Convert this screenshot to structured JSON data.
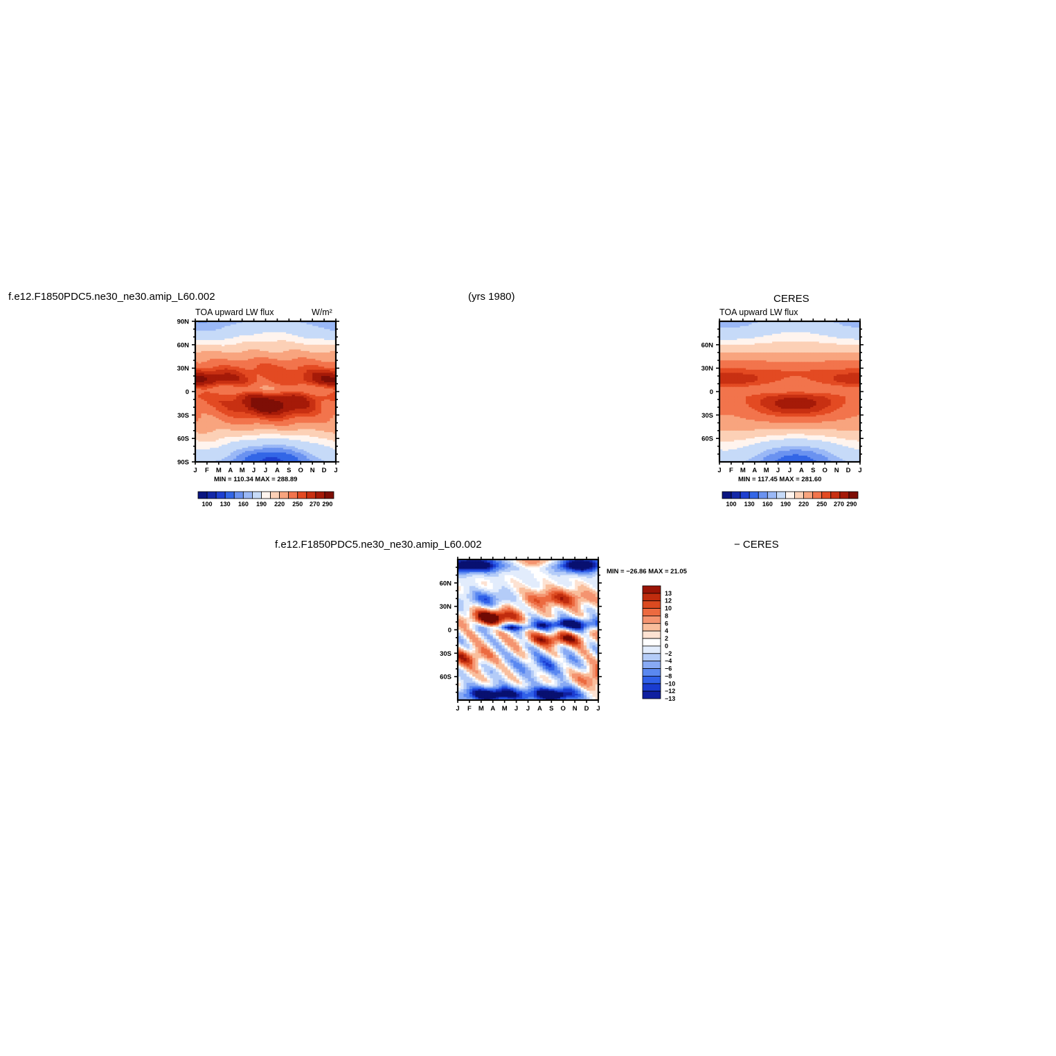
{
  "figure": {
    "case_title_left": "f.e12.F1850PDC5.ne30_ne30.amip_L60.002",
    "years_label": "(yrs 1980)",
    "case_title_right": "CERES",
    "diff_title_left": "f.e12.F1850PDC5.ne30_ne30.amip_L60.002",
    "diff_title_right": "− CERES"
  },
  "colors": {
    "abs_palette": [
      "#0a1580",
      "#1328a8",
      "#1e40d0",
      "#3366e6",
      "#6a92f0",
      "#9ab8f6",
      "#c6daf8",
      "#fff4ee",
      "#fcd0b6",
      "#f8a47e",
      "#f2744c",
      "#e34a22",
      "#c83012",
      "#a51a08",
      "#7e0e06"
    ],
    "diff_palette": [
      "#081070",
      "#1020a0",
      "#1a3cd0",
      "#3060e8",
      "#5a88f0",
      "#88aaf4",
      "#b4ccf8",
      "#e2ecfc",
      "#ffffff",
      "#fde2d2",
      "#f9be9c",
      "#f49470",
      "#ec6a40",
      "#db4a20",
      "#c02c0e",
      "#9a1406",
      "#700a04"
    ]
  },
  "chart_data": [
    {
      "type": "heatmap",
      "title": "TOA upward LW flux",
      "units": "W/m²",
      "x_tick_labels": [
        "J",
        "F",
        "M",
        "A",
        "M",
        "J",
        "J",
        "A",
        "S",
        "O",
        "N",
        "D",
        "J"
      ],
      "y_tick_labels": [
        "90N",
        "60N",
        "30N",
        "0",
        "30S",
        "60S",
        "90S"
      ],
      "y_values": [
        90,
        60,
        30,
        0,
        -30,
        -60,
        -90
      ],
      "stats": "MIN = 110.34 MAX = 288.89",
      "min": 110.34,
      "max": 288.89,
      "colorbar_labels": [
        "100",
        "130",
        "160",
        "190",
        "220",
        "250",
        "270",
        "290"
      ],
      "colorbar_levels": [
        100,
        130,
        160,
        190,
        220,
        250,
        270,
        290
      ],
      "zlim": [
        90,
        300
      ]
    },
    {
      "type": "heatmap",
      "title": "TOA upward LW flux",
      "x_tick_labels": [
        "J",
        "F",
        "M",
        "A",
        "M",
        "J",
        "J",
        "A",
        "S",
        "O",
        "N",
        "D",
        "J"
      ],
      "y_tick_labels": [
        "60N",
        "30N",
        "0",
        "30S",
        "60S"
      ],
      "y_values": [
        60,
        30,
        0,
        -30,
        -60
      ],
      "stats": "MIN = 117.45 MAX = 281.60",
      "min": 117.45,
      "max": 281.6,
      "colorbar_labels": [
        "100",
        "130",
        "160",
        "190",
        "220",
        "250",
        "270",
        "290"
      ],
      "colorbar_levels": [
        100,
        130,
        160,
        190,
        220,
        250,
        270,
        290
      ],
      "zlim": [
        90,
        300
      ]
    },
    {
      "type": "heatmap",
      "x_tick_labels": [
        "J",
        "F",
        "M",
        "A",
        "M",
        "J",
        "J",
        "A",
        "S",
        "O",
        "N",
        "D",
        "J"
      ],
      "y_tick_labels": [
        "60N",
        "30N",
        "0",
        "30S",
        "60S"
      ],
      "y_values": [
        60,
        30,
        0,
        -30,
        -60
      ],
      "stats": "MIN = −26.86 MAX =  21.05",
      "min": -26.86,
      "max": 21.05,
      "colorbar_labels": [
        "13",
        "12",
        "10",
        "8",
        "6",
        "4",
        "2",
        "0",
        "−2",
        "−4",
        "−6",
        "−8",
        "−10",
        "−12",
        "−13"
      ],
      "colorbar_levels": [
        13,
        12,
        10,
        8,
        6,
        4,
        2,
        0,
        -2,
        -4,
        -6,
        -8,
        -10,
        -12,
        -13
      ],
      "zlim": [
        -16,
        16
      ]
    }
  ]
}
